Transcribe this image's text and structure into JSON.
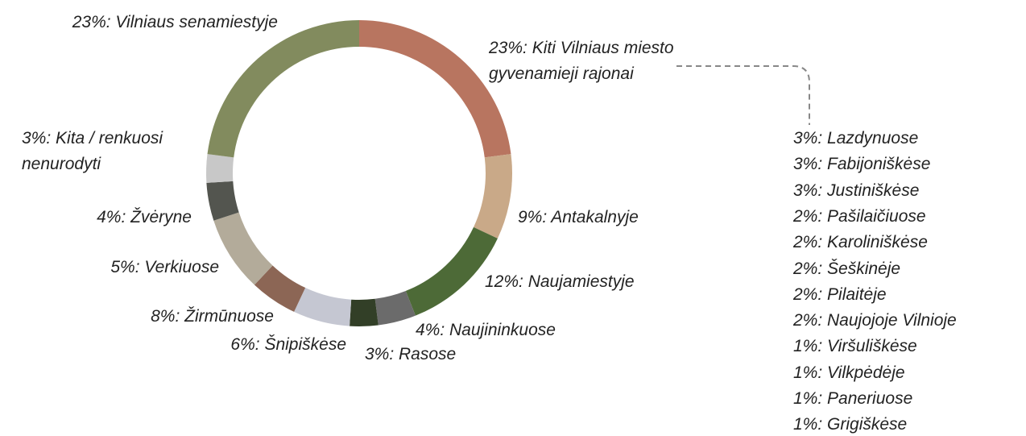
{
  "chart_data": {
    "type": "donut",
    "categories": [
      "23%: Kiti Vilniaus miesto gyvenamieji rajonai",
      "9%: Antakalnyje",
      "12%: Naujamiestyje",
      "4%: Naujininkuose",
      "3%: Rasose",
      "6%: Šnipiškėse",
      "5%: Verkiuose",
      "8%: Žirmūnuose",
      "4%: Žvėryne",
      "3%: Kita / renkuosi nenurodyti",
      "23%: Vilniaus senamiestyje"
    ],
    "values": [
      23,
      9,
      12,
      4,
      3,
      6,
      5,
      8,
      4,
      3,
      23
    ],
    "colors": [
      "#b87560",
      "#c9a988",
      "#4d6a37",
      "#6b6b6b",
      "#323f27",
      "#c5c7d2",
      "#8c6655",
      "#b3ab9a",
      "#53554f",
      "#c8c8c8",
      "#828b5e"
    ],
    "breakdown": [
      "3%: Lazdynuose",
      "3%: Fabijoniškėse",
      "3%: Justiniškėse",
      "2%: Pašilaičiuose",
      "2%: Karoliniškėse",
      "2%: Šeškinėje",
      "2%: Pilaitėje",
      "2%: Naujojoje Vilnioje",
      "1%: Viršuliškėse",
      "1%: Vilkpėdėje",
      "1%: Paneriuose",
      "1%: Grigiškėse"
    ]
  }
}
